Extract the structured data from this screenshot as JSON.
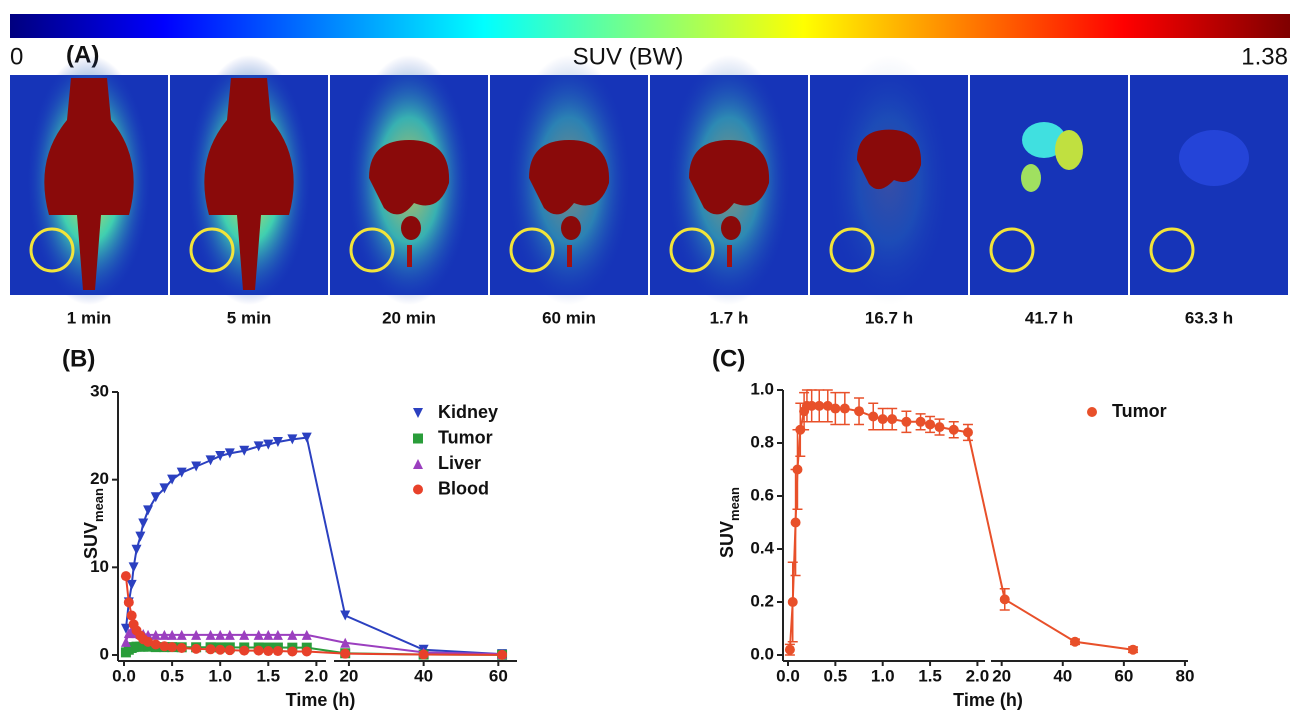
{
  "colorbar": {
    "min": 0,
    "title": "SUV (BW)",
    "max": 1.38
  },
  "panel_a": {
    "label": "(A)",
    "frames": [
      "1 min",
      "5 min",
      "20 min",
      "60 min",
      "1.7 h",
      "16.7 h",
      "41.7 h",
      "63.3 h"
    ]
  },
  "chart_data": [
    {
      "type": "line",
      "panel": "(B)",
      "x_label": "Time (h)",
      "y_label": "SUV",
      "y_label_sub": "mean",
      "legend": "upper right",
      "x": [
        0.02,
        0.05,
        0.08,
        0.1,
        0.13,
        0.17,
        0.2,
        0.25,
        0.33,
        0.42,
        0.5,
        0.6,
        0.75,
        0.9,
        1.0,
        1.1,
        1.25,
        1.4,
        1.5,
        1.6,
        1.75,
        1.9,
        19,
        40,
        61
      ],
      "x_segments": [
        {
          "xlim": [
            0,
            2.1
          ],
          "xticks": [
            {
              "value": 0,
              "label": "0.0"
            },
            0.5,
            {
              "value": 1,
              "label": "1.0"
            },
            1.5,
            {
              "value": 2,
              "label": "2.0"
            }
          ]
        },
        {
          "xlim": [
            16,
            65
          ],
          "xticks": [
            20,
            40,
            60
          ]
        }
      ],
      "ylim": [
        0,
        30
      ],
      "yticks": [
        0,
        10,
        20,
        30
      ],
      "series": [
        {
          "name": "Kidney",
          "color": "#2b40c0",
          "marker": "triangle-down",
          "values": [
            3,
            6,
            8,
            10,
            12,
            13.5,
            15,
            16.5,
            18,
            19,
            20,
            20.8,
            21.5,
            22.2,
            22.7,
            23,
            23.3,
            23.8,
            24,
            24.3,
            24.6,
            24.8,
            4.5,
            0.6,
            0.1
          ]
        },
        {
          "name": "Tumor",
          "color": "#2a9d3a",
          "marker": "square",
          "values": [
            0.3,
            0.6,
            0.8,
            0.9,
            0.95,
            0.95,
            0.95,
            0.95,
            0.9,
            0.9,
            0.9,
            0.88,
            0.88,
            0.88,
            0.87,
            0.87,
            0.86,
            0.86,
            0.85,
            0.85,
            0.84,
            0.84,
            0.2,
            0.05,
            0.02
          ]
        },
        {
          "name": "Liver",
          "color": "#9b3fbf",
          "marker": "triangle-up",
          "values": [
            1.5,
            2.5,
            2.8,
            2.6,
            2.5,
            2.4,
            2.4,
            2.3,
            2.3,
            2.3,
            2.3,
            2.3,
            2.3,
            2.3,
            2.3,
            2.3,
            2.3,
            2.3,
            2.3,
            2.3,
            2.3,
            2.3,
            1.4,
            0.3,
            0.1
          ]
        },
        {
          "name": "Blood",
          "color": "#e8412a",
          "marker": "circle",
          "values": [
            9,
            6,
            4.5,
            3.5,
            2.8,
            2.2,
            1.8,
            1.5,
            1.2,
            1.0,
            0.9,
            0.8,
            0.7,
            0.65,
            0.6,
            0.55,
            0.5,
            0.5,
            0.45,
            0.45,
            0.4,
            0.4,
            0.15,
            0.05,
            0.02
          ]
        }
      ]
    },
    {
      "type": "line",
      "panel": "(C)",
      "x_label": "Time (h)",
      "y_label": "SUV",
      "y_label_sub": "mean",
      "legend": "upper right",
      "x": [
        0.02,
        0.05,
        0.08,
        0.1,
        0.13,
        0.17,
        0.2,
        0.25,
        0.33,
        0.42,
        0.5,
        0.6,
        0.75,
        0.9,
        1.0,
        1.1,
        1.25,
        1.4,
        1.5,
        1.6,
        1.75,
        1.9,
        21,
        44,
        63
      ],
      "x_segments": [
        {
          "xlim": [
            0,
            2.08
          ],
          "xticks": [
            {
              "value": 0,
              "label": "0.0"
            },
            0.5,
            {
              "value": 1,
              "label": "1.0"
            },
            1.5,
            {
              "value": 2,
              "label": "2.0"
            }
          ]
        },
        {
          "xlim": [
            16.5,
            81
          ],
          "xticks": [
            20,
            40,
            60,
            80
          ]
        }
      ],
      "ylim": [
        0,
        1.0
      ],
      "yticks": [
        {
          "value": 0,
          "label": "0.0"
        },
        0.2,
        0.4,
        0.6,
        0.8,
        {
          "value": 1,
          "label": "1.0"
        }
      ],
      "series": [
        {
          "name": "Tumor",
          "color": "#e8502a",
          "marker": "circle",
          "values": [
            0.02,
            0.2,
            0.5,
            0.7,
            0.85,
            0.92,
            0.94,
            0.94,
            0.94,
            0.94,
            0.93,
            0.93,
            0.92,
            0.9,
            0.89,
            0.89,
            0.88,
            0.88,
            0.87,
            0.86,
            0.85,
            0.84,
            0.21,
            0.05,
            0.02
          ],
          "errors": [
            0.02,
            0.15,
            0.2,
            0.15,
            0.1,
            0.07,
            0.06,
            0.06,
            0.06,
            0.06,
            0.06,
            0.06,
            0.05,
            0.05,
            0.04,
            0.04,
            0.04,
            0.03,
            0.03,
            0.03,
            0.03,
            0.03,
            0.04,
            0.01,
            0.01
          ]
        }
      ]
    }
  ]
}
